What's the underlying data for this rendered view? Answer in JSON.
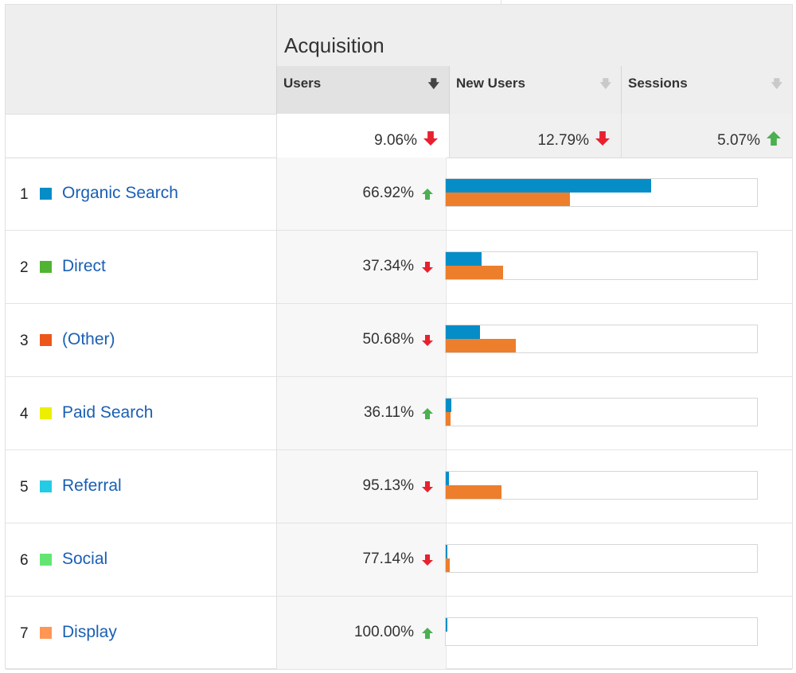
{
  "header": {
    "group_title": "Acquisition",
    "columns": [
      {
        "label": "Users",
        "sort_icon": "arrow-down-icon",
        "active": true
      },
      {
        "label": "New Users",
        "sort_icon": "arrow-down-icon",
        "active": false
      },
      {
        "label": "Sessions",
        "sort_icon": "arrow-down-icon",
        "active": false
      }
    ]
  },
  "summary": {
    "users": {
      "value": "9.06%",
      "direction": "down"
    },
    "new_users": {
      "value": "12.79%",
      "direction": "down"
    },
    "sessions": {
      "value": "5.07%",
      "direction": "up"
    }
  },
  "colors": {
    "up": "#4caf50",
    "down": "#e8212f",
    "bar_current": "#058dc7",
    "bar_previous": "#ed7e2c",
    "link": "#1a5fb4"
  },
  "rows": [
    {
      "rank": "1",
      "name": "Organic Search",
      "swatch": "#058dc7",
      "pct": "66.92%",
      "direction": "up",
      "bar_current": 0.66,
      "bar_previous": 0.4
    },
    {
      "rank": "2",
      "name": "Direct",
      "swatch": "#50b432",
      "pct": "37.34%",
      "direction": "down",
      "bar_current": 0.115,
      "bar_previous": 0.185
    },
    {
      "rank": "3",
      "name": "(Other)",
      "swatch": "#ed561b",
      "pct": "50.68%",
      "direction": "down",
      "bar_current": 0.11,
      "bar_previous": 0.225
    },
    {
      "rank": "4",
      "name": "Paid Search",
      "swatch": "#edef00",
      "pct": "36.11%",
      "direction": "up",
      "bar_current": 0.018,
      "bar_previous": 0.015
    },
    {
      "rank": "5",
      "name": "Referral",
      "swatch": "#24cbe5",
      "pct": "95.13%",
      "direction": "down",
      "bar_current": 0.01,
      "bar_previous": 0.18
    },
    {
      "rank": "6",
      "name": "Social",
      "swatch": "#64e572",
      "pct": "77.14%",
      "direction": "down",
      "bar_current": 0.004,
      "bar_previous": 0.013
    },
    {
      "rank": "7",
      "name": "Display",
      "swatch": "#ff9655",
      "pct": "100.00%",
      "direction": "up",
      "bar_current": 0.004,
      "bar_previous": 0
    }
  ]
}
